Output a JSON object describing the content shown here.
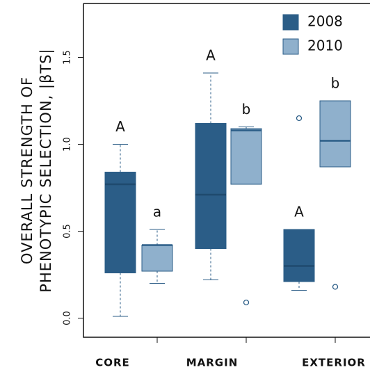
{
  "chart_data": {
    "type": "box",
    "ylabel": [
      "OVERALL STRENGTH OF",
      "PHENOTYPIC SELECTION, |βTS|"
    ],
    "categories": [
      "CORE",
      "MARGIN",
      "EXTERIOR"
    ],
    "ylim": [
      -0.11,
      1.81
    ],
    "yticks": [
      {
        "value": 0,
        "label": "0.0"
      },
      0.5,
      {
        "value": 1,
        "label": "1.0"
      },
      1.5
    ],
    "legend": "top-right",
    "series": [
      {
        "name": "2008",
        "color": "#2b5d87",
        "median_color": "#1f4a6e",
        "min": [
          0.01,
          0.22,
          0.16
        ],
        "q1": [
          0.26,
          0.4,
          0.21
        ],
        "median": [
          0.77,
          0.71,
          0.3
        ],
        "q3": [
          0.84,
          1.12,
          0.51
        ],
        "max": [
          1.0,
          1.41,
          0.51
        ],
        "outliers": [
          [],
          [],
          [
            1.15
          ]
        ],
        "letters": [
          "A",
          "A",
          "A"
        ]
      },
      {
        "name": "2010",
        "color": "#8fb0cc",
        "median_color": "#2b5d87",
        "min": [
          0.2,
          0.77,
          0.87
        ],
        "q1": [
          0.27,
          0.77,
          0.87
        ],
        "median": [
          0.42,
          1.08,
          1.02
        ],
        "q3": [
          0.42,
          1.09,
          1.25
        ],
        "max": [
          0.51,
          1.1,
          1.25
        ],
        "outliers": [
          [],
          [
            0.09
          ],
          [
            0.18
          ]
        ],
        "letters": [
          "a",
          "b",
          "b"
        ]
      }
    ]
  }
}
